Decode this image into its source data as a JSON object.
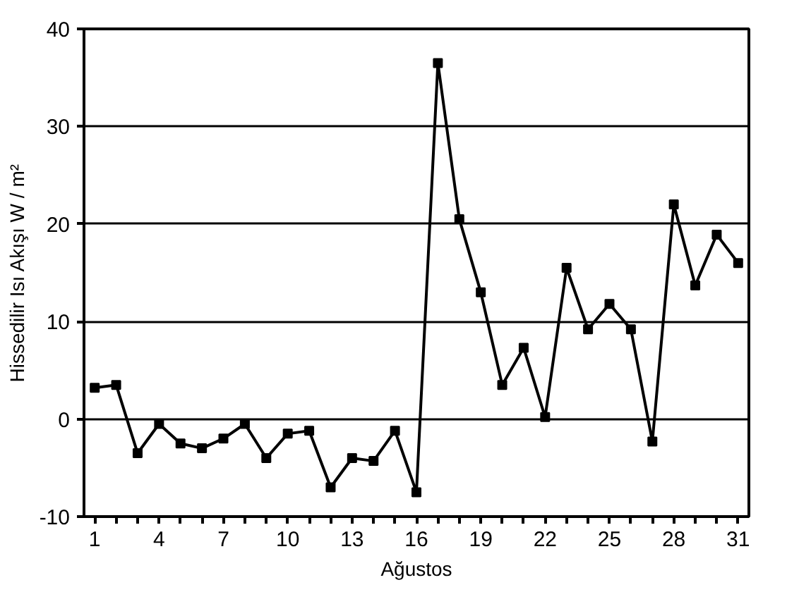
{
  "chart_data": {
    "type": "line",
    "xlabel": "Ağustos",
    "ylabel": "Hissedilir Isı Akışı W / m²",
    "x": [
      1,
      2,
      3,
      4,
      5,
      6,
      7,
      8,
      9,
      10,
      11,
      12,
      13,
      14,
      15,
      16,
      17,
      18,
      19,
      20,
      21,
      22,
      23,
      24,
      25,
      26,
      27,
      28,
      29,
      30,
      31
    ],
    "series": [
      {
        "color": "#000000",
        "values": [
          3.2,
          3.5,
          -3.5,
          -0.5,
          -2.5,
          -3,
          -2,
          -0.5,
          -4,
          -1.5,
          -1.2,
          -7,
          -4,
          -4.3,
          -1.2,
          -7.5,
          36.5,
          20.5,
          13,
          3.5,
          7.3,
          0.2,
          15.5,
          9.2,
          11.8,
          9.2,
          -2.3,
          22,
          13.7,
          18.9,
          16
        ]
      }
    ],
    "xlim": [
      0.5,
      31.5
    ],
    "xticks": [
      1,
      {
        "value": 2,
        "label": null
      },
      {
        "value": 3,
        "label": null
      },
      4,
      {
        "value": 5,
        "label": null
      },
      {
        "value": 6,
        "label": null
      },
      7,
      {
        "value": 8,
        "label": null
      },
      {
        "value": 9,
        "label": null
      },
      10,
      {
        "value": 11,
        "label": null
      },
      {
        "value": 12,
        "label": null
      },
      13,
      {
        "value": 14,
        "label": null
      },
      {
        "value": 15,
        "label": null
      },
      16,
      {
        "value": 17,
        "label": null
      },
      {
        "value": 18,
        "label": null
      },
      19,
      {
        "value": 20,
        "label": null
      },
      {
        "value": 21,
        "label": null
      },
      22,
      {
        "value": 23,
        "label": null
      },
      {
        "value": 24,
        "label": null
      },
      25,
      {
        "value": 26,
        "label": null
      },
      {
        "value": 27,
        "label": null
      },
      28,
      {
        "value": 29,
        "label": null
      },
      {
        "value": 30,
        "label": null
      },
      31
    ],
    "ylim": [
      -10,
      40
    ],
    "yticks": [
      -10,
      0,
      10,
      20,
      30,
      40
    ],
    "grid": "y",
    "marker": "square",
    "line_style": "solid"
  }
}
